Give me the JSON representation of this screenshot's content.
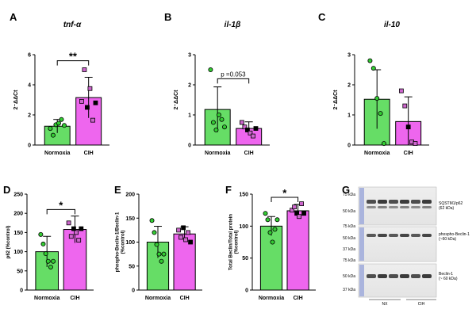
{
  "figure": {
    "background": "#ffffff"
  },
  "colors": {
    "normoxia": "#66dd66",
    "cih": "#ee66ee",
    "point_normoxia": "#33cc33",
    "point_cih": "#cc66cc",
    "axis": "#000000"
  },
  "chart_data": [
    {
      "panel": "A",
      "type": "bar",
      "title": "tnf-α",
      "italic_title": true,
      "ylabel": "2⁻ΔΔCt",
      "ylim": [
        0,
        6
      ],
      "yticks": [
        "0",
        "2",
        "4",
        "6"
      ],
      "categories": [
        "Normoxia",
        "CIH"
      ],
      "values": [
        1.25,
        3.15
      ],
      "err": [
        0.45,
        1.35
      ],
      "points": [
        [
          1.1,
          0.65,
          1.35,
          1.45,
          1.7,
          1.3
        ],
        [
          2.9,
          5.0,
          2.5,
          3.75,
          1.65,
          2.8
        ]
      ],
      "significance": "**",
      "sig_y": 5.6
    },
    {
      "panel": "B",
      "type": "bar",
      "title": "il-1β",
      "italic_title": true,
      "ylabel": "2⁻ΔΔCt",
      "ylim": [
        0,
        3
      ],
      "yticks": [
        "0",
        "1",
        "2",
        "3"
      ],
      "categories": [
        "Normoxia",
        "CIH"
      ],
      "values": [
        1.18,
        0.55
      ],
      "err": [
        0.75,
        0.22
      ],
      "points": [
        [
          2.5,
          0.75,
          0.5,
          1.0,
          0.85,
          0.6
        ],
        [
          0.75,
          0.6,
          0.5,
          0.4,
          0.3,
          0.55
        ]
      ],
      "significance": "p =0.053",
      "sig_y": 2.2
    },
    {
      "panel": "C",
      "type": "bar",
      "title": "il-10",
      "italic_title": true,
      "ylabel": "2⁻ΔΔCt",
      "ylim": [
        0,
        3
      ],
      "yticks": [
        "0",
        "1",
        "2",
        "3"
      ],
      "categories": [
        "Normoxia",
        "CIH"
      ],
      "values": [
        1.52,
        0.78
      ],
      "err": [
        0.98,
        0.82
      ],
      "points": [
        [
          2.8,
          2.55,
          1.55,
          1.05,
          0.05
        ],
        [
          1.8,
          1.3,
          0.6,
          0.1,
          0.05
        ]
      ],
      "significance": "",
      "sig_y": null
    },
    {
      "panel": "D",
      "type": "bar",
      "title": "",
      "ylabel": "p62 (%control)",
      "ylim": [
        0,
        250
      ],
      "yticks": [
        "0",
        "50",
        "100",
        "150",
        "200",
        "250"
      ],
      "categories": [
        "Normoxia",
        "CIH"
      ],
      "values": [
        100,
        158
      ],
      "err": [
        40,
        35
      ],
      "points": [
        [
          145,
          120,
          95,
          75,
          60,
          75
        ],
        [
          175,
          140,
          160,
          150,
          130,
          160
        ]
      ],
      "significance": "*",
      "sig_y": 210
    },
    {
      "panel": "E",
      "type": "bar",
      "title": "",
      "ylabel": "phospho-Beclin-1/Beclin-1 (%control)",
      "ylim": [
        0,
        200
      ],
      "yticks": [
        "0",
        "50",
        "100",
        "150",
        "200"
      ],
      "categories": [
        "Normoxia",
        "CIH"
      ],
      "values": [
        100,
        117
      ],
      "err": [
        33,
        15
      ],
      "points": [
        [
          145,
          120,
          95,
          75,
          60,
          75
        ],
        [
          125,
          110,
          130,
          105,
          120,
          100
        ]
      ],
      "significance": "",
      "sig_y": null
    },
    {
      "panel": "F",
      "type": "bar",
      "title": "",
      "ylabel": "Total Beclin/Total protein (%control)",
      "ylim": [
        0,
        150
      ],
      "yticks": [
        "0",
        "50",
        "100",
        "150"
      ],
      "categories": [
        "Normoxia",
        "CIH"
      ],
      "values": [
        100,
        124
      ],
      "err": [
        15,
        10
      ],
      "points": [
        [
          120,
          110,
          90,
          75,
          95,
          110
        ],
        [
          125,
          130,
          120,
          115,
          135,
          120
        ]
      ],
      "significance": "*",
      "sig_y": 145
    }
  ],
  "blot": {
    "panel": "G",
    "top": {
      "markers": [
        "75 kDa",
        "50 kDa"
      ],
      "label_1": "SQSTM1/p62",
      "label_2": "(62 kDa)"
    },
    "middle": {
      "markers": [
        "75 kDa",
        "50 kDa",
        "37 kDa"
      ],
      "label_1": "phospho-Beclin-1",
      "label_2": "(~60 kDa)"
    },
    "bottom": {
      "markers": [
        "75 kDa",
        "50 kDa",
        "37 kDa"
      ],
      "label_1": "Beclin-1",
      "label_2": "(~ 60 kDa)"
    },
    "groups": [
      "NX",
      "CIH"
    ]
  }
}
